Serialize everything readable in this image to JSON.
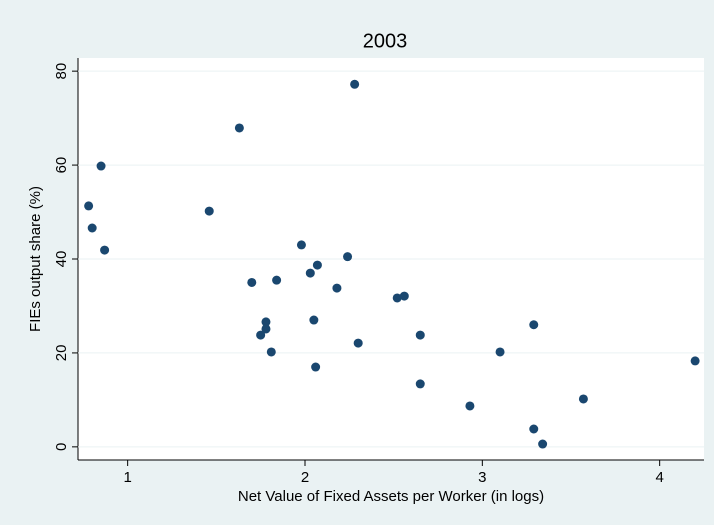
{
  "chart_data": {
    "type": "scatter",
    "title": "2003",
    "x_label": "Net Value of Fixed Assets per Worker (in logs)",
    "y_label": "FIEs output share (%)",
    "color": "#1a476f",
    "grid": true,
    "xlim": [
      0.72,
      4.25
    ],
    "ylim": [
      -2.8,
      82.8
    ],
    "xticks": [
      1,
      2,
      3,
      4
    ],
    "yticks": [
      0,
      20,
      40,
      60,
      80
    ],
    "x": [
      0.78,
      0.8,
      0.85,
      0.87,
      1.46,
      1.63,
      1.7,
      1.84,
      1.98,
      2.07,
      2.03,
      2.24,
      2.18,
      1.78,
      1.78,
      1.75,
      1.81,
      2.05,
      2.06,
      2.3,
      2.28,
      2.52,
      2.56,
      2.65,
      2.65,
      2.93,
      3.1,
      3.29,
      3.29,
      3.34,
      3.57,
      4.2
    ],
    "y": [
      51.3,
      46.6,
      59.8,
      41.9,
      50.2,
      67.9,
      35,
      35.5,
      43,
      38.7,
      37,
      40.5,
      33.8,
      26.6,
      25.1,
      23.8,
      20.2,
      27,
      17,
      22.1,
      77.2,
      31.7,
      32.1,
      23.8,
      13.4,
      8.7,
      20.2,
      26,
      3.8,
      0.6,
      10.2,
      18.3
    ]
  }
}
